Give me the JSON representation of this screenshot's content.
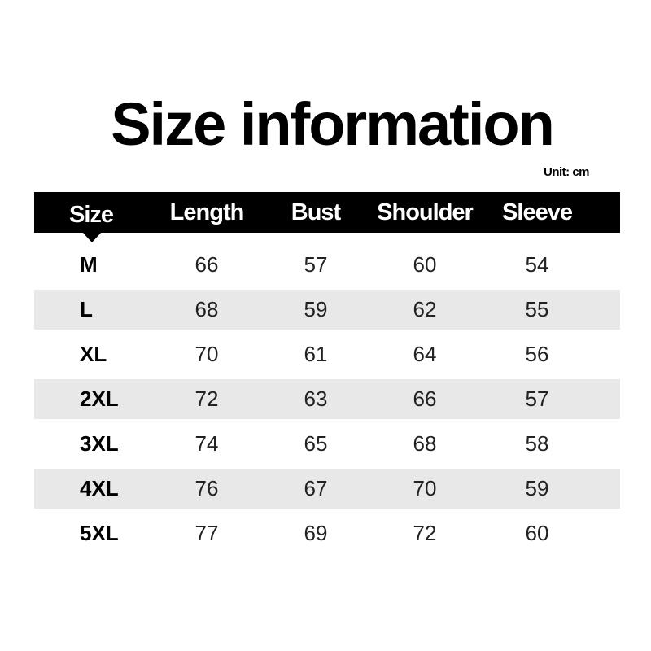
{
  "title": "Size information",
  "unit": "Unit: cm",
  "columns": [
    "Size",
    "Length",
    "Bust",
    "Shoulder",
    "Sleeve"
  ],
  "rows": [
    [
      "M",
      "66",
      "57",
      "60",
      "54"
    ],
    [
      "L",
      "68",
      "59",
      "62",
      "55"
    ],
    [
      "XL",
      "70",
      "61",
      "64",
      "56"
    ],
    [
      "2XL",
      "72",
      "63",
      "66",
      "57"
    ],
    [
      "3XL",
      "74",
      "65",
      "68",
      "58"
    ],
    [
      "4XL",
      "76",
      "67",
      "70",
      "59"
    ],
    [
      "5XL",
      "77",
      "69",
      "72",
      "60"
    ]
  ],
  "colors": {
    "header_bg": "#000000",
    "stripe": "#e8e8e8"
  }
}
